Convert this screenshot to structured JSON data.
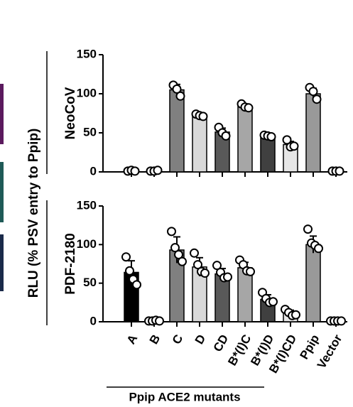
{
  "chart_data": [
    {
      "type": "bar",
      "title": "NeoCoV",
      "ylabel": "RLU (% PSV entry to Ppip)",
      "categories": [
        "A",
        "B",
        "C",
        "D",
        "CD",
        "B*(I)C",
        "B*(I)D",
        "B*(I)CD",
        "Ppip",
        "Vector"
      ],
      "values": [
        1,
        1,
        105,
        72,
        51,
        84,
        46,
        35,
        100,
        1
      ],
      "errors": [
        1,
        1,
        7,
        2,
        5,
        3,
        1,
        4,
        7,
        0
      ],
      "points": [
        [
          1,
          2,
          1
        ],
        [
          1,
          1,
          2
        ],
        [
          111,
          106,
          97
        ],
        [
          74,
          72,
          71
        ],
        [
          57,
          50,
          46
        ],
        [
          87,
          83,
          82
        ],
        [
          47,
          46,
          45
        ],
        [
          41,
          32,
          33
        ],
        [
          108,
          103,
          93
        ],
        [
          1,
          1,
          1
        ]
      ],
      "colors": [
        "#000000",
        "#bfbfbf",
        "#808080",
        "#d9d9d9",
        "#595959",
        "#a6a6a6",
        "#404040",
        "#e6e6e6",
        "#999999",
        "#ffffff"
      ],
      "ylim": [
        0,
        150
      ],
      "yticks": [
        0,
        50,
        100,
        150
      ]
    },
    {
      "type": "bar",
      "title": "PDF-2180",
      "xlabel": "Ppip ACE2 mutants",
      "categories": [
        "A",
        "B",
        "C",
        "D",
        "CD",
        "B*(I)C",
        "B*(I)D",
        "B*(I)CD",
        "Ppip",
        "Vector"
      ],
      "values": [
        64,
        1,
        93,
        71,
        62,
        70,
        29,
        11,
        100,
        1
      ],
      "errors": [
        15,
        1,
        17,
        12,
        7,
        7,
        6,
        4,
        11,
        0
      ],
      "points": [
        [
          84,
          66,
          55,
          48
        ],
        [
          1,
          1,
          2,
          1
        ],
        [
          117,
          96,
          87,
          78
        ],
        [
          89,
          74,
          65,
          63
        ],
        [
          73,
          64,
          57,
          58
        ],
        [
          80,
          74,
          66,
          65
        ],
        [
          38,
          30,
          25,
          26
        ],
        [
          16,
          12,
          8,
          9
        ],
        [
          120,
          102,
          99,
          95
        ],
        [
          1,
          1,
          1,
          1
        ]
      ],
      "colors": [
        "#000000",
        "#bfbfbf",
        "#808080",
        "#d9d9d9",
        "#595959",
        "#a6a6a6",
        "#404040",
        "#e6e6e6",
        "#999999",
        "#ffffff"
      ],
      "ylim": [
        0,
        150
      ],
      "yticks": [
        0,
        50,
        100,
        150
      ]
    }
  ]
}
